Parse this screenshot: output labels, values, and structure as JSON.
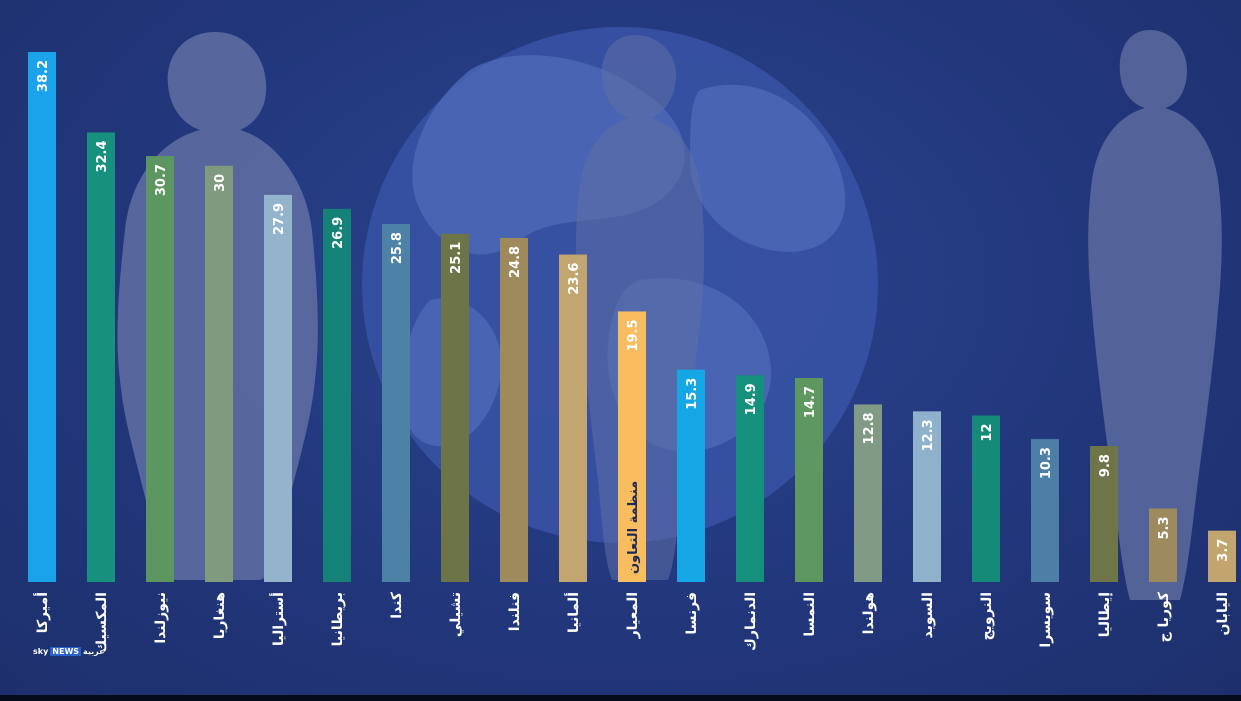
{
  "logo": {
    "sky": "sky",
    "news": "NEWS",
    "arabic": "عربية"
  },
  "colors": {
    "background": "#22377c",
    "silhouette": "#6a77a8",
    "globe": "#3a54a6"
  },
  "chart_data": {
    "type": "bar",
    "orientation": "vertical",
    "title": "",
    "xlabel": "",
    "ylabel": "",
    "ylim": [
      0,
      38.2
    ],
    "grid": false,
    "categories": [
      "أميركا",
      "المكسيك",
      "نيوزلندا",
      "هنغاريا",
      "أستراليا",
      "بريطانيا",
      "كندا",
      "تشيلي",
      "فنلندا",
      "ألمانيا",
      "المعيار",
      "فرنسا",
      "الدنمارك",
      "النمسا",
      "هولندا",
      "السويد",
      "النرويج",
      "سويسرا",
      "إيطاليا",
      "كوريا ج",
      "اليابان"
    ],
    "values": [
      38.2,
      32.4,
      30.7,
      30,
      27.9,
      26.9,
      25.8,
      25.1,
      24.8,
      23.6,
      19.5,
      15.3,
      14.9,
      14.7,
      12.8,
      12.3,
      12,
      10.3,
      9.8,
      5.3,
      3.7
    ],
    "value_labels": [
      "38.2",
      "32.4",
      "30.7",
      "30",
      "27.9",
      "26.9",
      "25.8",
      "25.1",
      "24.8",
      "23.6",
      "19.5",
      "15.3",
      "14.9",
      "14.7",
      "12.8",
      "12.3",
      "12",
      "10.3",
      "9.8",
      "5.3",
      "3.7"
    ],
    "bar_colors": [
      "#1aa3ea",
      "#17917d",
      "#5c9660",
      "#7f9a7f",
      "#93b4cc",
      "#148276",
      "#4e81a6",
      "#6d7548",
      "#9f8a5e",
      "#c3a56f",
      "#f7bd5f",
      "#15a6e5",
      "#14907c",
      "#5f9760",
      "#819a85",
      "#8fb1cc",
      "#168a78",
      "#4d7fa6",
      "#6e7649",
      "#9d8a5e",
      "#c2a46e"
    ],
    "highlight": {
      "index": 10,
      "inbar_label": "منظمة التعاون"
    }
  }
}
